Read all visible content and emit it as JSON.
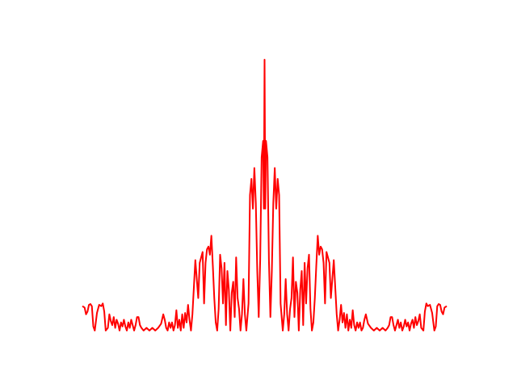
{
  "chart_data": {
    "type": "line",
    "title": "",
    "xlabel": "",
    "ylabel": "",
    "axes_visible": false,
    "grid": false,
    "legend": "none",
    "xlim": [
      0,
      1
    ],
    "ylim": [
      0,
      1
    ],
    "series": [
      {
        "color": "#ff0000",
        "points": [
          [
            0.0,
            0.09
          ],
          [
            0.006,
            0.085
          ],
          [
            0.01,
            0.06
          ],
          [
            0.014,
            0.07
          ],
          [
            0.018,
            0.095
          ],
          [
            0.022,
            0.098
          ],
          [
            0.026,
            0.09
          ],
          [
            0.03,
            0.015
          ],
          [
            0.034,
            0.0
          ],
          [
            0.04,
            0.065
          ],
          [
            0.046,
            0.095
          ],
          [
            0.052,
            0.09
          ],
          [
            0.056,
            0.1
          ],
          [
            0.06,
            0.07
          ],
          [
            0.064,
            0.0
          ],
          [
            0.07,
            0.01
          ],
          [
            0.074,
            0.06
          ],
          [
            0.078,
            0.035
          ],
          [
            0.082,
            0.02
          ],
          [
            0.086,
            0.05
          ],
          [
            0.09,
            0.01
          ],
          [
            0.094,
            0.04
          ],
          [
            0.098,
            0.025
          ],
          [
            0.102,
            0.0
          ],
          [
            0.106,
            0.03
          ],
          [
            0.11,
            0.015
          ],
          [
            0.114,
            0.04
          ],
          [
            0.118,
            0.015
          ],
          [
            0.122,
            0.0
          ],
          [
            0.126,
            0.03
          ],
          [
            0.13,
            0.01
          ],
          [
            0.134,
            0.04
          ],
          [
            0.138,
            0.02
          ],
          [
            0.142,
            0.0
          ],
          [
            0.146,
            0.02
          ],
          [
            0.15,
            0.05
          ],
          [
            0.154,
            0.05
          ],
          [
            0.158,
            0.02
          ],
          [
            0.162,
            0.01
          ],
          [
            0.168,
            0.0
          ],
          [
            0.176,
            0.01
          ],
          [
            0.184,
            0.0
          ],
          [
            0.192,
            0.01
          ],
          [
            0.2,
            0.0
          ],
          [
            0.208,
            0.01
          ],
          [
            0.216,
            0.025
          ],
          [
            0.222,
            0.06
          ],
          [
            0.226,
            0.04
          ],
          [
            0.23,
            0.01
          ],
          [
            0.234,
            0.0
          ],
          [
            0.238,
            0.03
          ],
          [
            0.242,
            0.01
          ],
          [
            0.246,
            0.03
          ],
          [
            0.25,
            0.0
          ],
          [
            0.254,
            0.02
          ],
          [
            0.258,
            0.075
          ],
          [
            0.262,
            0.01
          ],
          [
            0.266,
            0.04
          ],
          [
            0.27,
            0.0
          ],
          [
            0.274,
            0.06
          ],
          [
            0.278,
            0.01
          ],
          [
            0.282,
            0.065
          ],
          [
            0.286,
            0.03
          ],
          [
            0.29,
            0.095
          ],
          [
            0.294,
            0.04
          ],
          [
            0.298,
            0.0
          ],
          [
            0.302,
            0.06
          ],
          [
            0.306,
            0.16
          ],
          [
            0.31,
            0.26
          ],
          [
            0.314,
            0.19
          ],
          [
            0.318,
            0.12
          ],
          [
            0.322,
            0.25
          ],
          [
            0.326,
            0.27
          ],
          [
            0.33,
            0.29
          ],
          [
            0.334,
            0.1
          ],
          [
            0.338,
            0.25
          ],
          [
            0.342,
            0.3
          ],
          [
            0.346,
            0.31
          ],
          [
            0.35,
            0.28
          ],
          [
            0.354,
            0.35
          ],
          [
            0.358,
            0.24
          ],
          [
            0.362,
            0.12
          ],
          [
            0.366,
            0.03
          ],
          [
            0.37,
            0.0
          ],
          [
            0.374,
            0.08
          ],
          [
            0.378,
            0.28
          ],
          [
            0.382,
            0.23
          ],
          [
            0.386,
            0.1
          ],
          [
            0.39,
            0.25
          ],
          [
            0.394,
            0.02
          ],
          [
            0.398,
            0.22
          ],
          [
            0.402,
            0.15
          ],
          [
            0.406,
            0.0
          ],
          [
            0.41,
            0.14
          ],
          [
            0.414,
            0.18
          ],
          [
            0.418,
            0.05
          ],
          [
            0.422,
            0.27
          ],
          [
            0.426,
            0.12
          ],
          [
            0.43,
            0.08
          ],
          [
            0.434,
            0.0
          ],
          [
            0.438,
            0.06
          ],
          [
            0.442,
            0.19
          ],
          [
            0.446,
            0.06
          ],
          [
            0.45,
            0.0
          ],
          [
            0.456,
            0.1
          ],
          [
            0.46,
            0.5
          ],
          [
            0.464,
            0.56
          ],
          [
            0.468,
            0.45
          ],
          [
            0.472,
            0.6
          ],
          [
            0.476,
            0.47
          ],
          [
            0.48,
            0.22
          ],
          [
            0.484,
            0.05
          ],
          [
            0.488,
            0.26
          ],
          [
            0.492,
            0.64
          ],
          [
            0.496,
            0.7
          ],
          [
            0.498,
            0.45
          ],
          [
            0.5,
            1.0
          ],
          [
            0.502,
            0.45
          ],
          [
            0.504,
            0.7
          ],
          [
            0.508,
            0.64
          ],
          [
            0.512,
            0.26
          ],
          [
            0.516,
            0.05
          ],
          [
            0.52,
            0.22
          ],
          [
            0.524,
            0.47
          ],
          [
            0.528,
            0.6
          ],
          [
            0.532,
            0.45
          ],
          [
            0.536,
            0.56
          ],
          [
            0.54,
            0.5
          ],
          [
            0.544,
            0.1
          ],
          [
            0.55,
            0.0
          ],
          [
            0.554,
            0.06
          ],
          [
            0.558,
            0.19
          ],
          [
            0.562,
            0.06
          ],
          [
            0.566,
            0.0
          ],
          [
            0.57,
            0.08
          ],
          [
            0.574,
            0.12
          ],
          [
            0.578,
            0.27
          ],
          [
            0.582,
            0.05
          ],
          [
            0.586,
            0.18
          ],
          [
            0.59,
            0.14
          ],
          [
            0.594,
            0.0
          ],
          [
            0.598,
            0.15
          ],
          [
            0.602,
            0.22
          ],
          [
            0.606,
            0.02
          ],
          [
            0.61,
            0.25
          ],
          [
            0.614,
            0.1
          ],
          [
            0.618,
            0.23
          ],
          [
            0.622,
            0.28
          ],
          [
            0.626,
            0.08
          ],
          [
            0.63,
            0.0
          ],
          [
            0.634,
            0.03
          ],
          [
            0.638,
            0.12
          ],
          [
            0.642,
            0.24
          ],
          [
            0.646,
            0.35
          ],
          [
            0.65,
            0.28
          ],
          [
            0.654,
            0.31
          ],
          [
            0.658,
            0.3
          ],
          [
            0.662,
            0.25
          ],
          [
            0.666,
            0.1
          ],
          [
            0.67,
            0.29
          ],
          [
            0.674,
            0.27
          ],
          [
            0.678,
            0.25
          ],
          [
            0.682,
            0.12
          ],
          [
            0.686,
            0.19
          ],
          [
            0.69,
            0.26
          ],
          [
            0.694,
            0.16
          ],
          [
            0.698,
            0.06
          ],
          [
            0.702,
            0.0
          ],
          [
            0.706,
            0.04
          ],
          [
            0.71,
            0.095
          ],
          [
            0.714,
            0.03
          ],
          [
            0.718,
            0.065
          ],
          [
            0.722,
            0.01
          ],
          [
            0.726,
            0.06
          ],
          [
            0.73,
            0.0
          ],
          [
            0.734,
            0.04
          ],
          [
            0.738,
            0.01
          ],
          [
            0.742,
            0.075
          ],
          [
            0.746,
            0.02
          ],
          [
            0.75,
            0.0
          ],
          [
            0.754,
            0.03
          ],
          [
            0.758,
            0.01
          ],
          [
            0.762,
            0.03
          ],
          [
            0.766,
            0.0
          ],
          [
            0.77,
            0.01
          ],
          [
            0.774,
            0.04
          ],
          [
            0.778,
            0.06
          ],
          [
            0.784,
            0.025
          ],
          [
            0.792,
            0.01
          ],
          [
            0.8,
            0.0
          ],
          [
            0.808,
            0.01
          ],
          [
            0.816,
            0.0
          ],
          [
            0.824,
            0.01
          ],
          [
            0.832,
            0.0
          ],
          [
            0.838,
            0.01
          ],
          [
            0.842,
            0.02
          ],
          [
            0.846,
            0.05
          ],
          [
            0.85,
            0.05
          ],
          [
            0.854,
            0.02
          ],
          [
            0.858,
            0.0
          ],
          [
            0.862,
            0.02
          ],
          [
            0.866,
            0.04
          ],
          [
            0.87,
            0.01
          ],
          [
            0.874,
            0.03
          ],
          [
            0.878,
            0.0
          ],
          [
            0.882,
            0.015
          ],
          [
            0.886,
            0.04
          ],
          [
            0.89,
            0.015
          ],
          [
            0.894,
            0.03
          ],
          [
            0.898,
            0.0
          ],
          [
            0.902,
            0.025
          ],
          [
            0.906,
            0.04
          ],
          [
            0.91,
            0.01
          ],
          [
            0.914,
            0.05
          ],
          [
            0.918,
            0.02
          ],
          [
            0.922,
            0.035
          ],
          [
            0.926,
            0.06
          ],
          [
            0.93,
            0.01
          ],
          [
            0.936,
            0.0
          ],
          [
            0.94,
            0.07
          ],
          [
            0.944,
            0.1
          ],
          [
            0.948,
            0.09
          ],
          [
            0.954,
            0.095
          ],
          [
            0.96,
            0.065
          ],
          [
            0.966,
            0.0
          ],
          [
            0.97,
            0.015
          ],
          [
            0.974,
            0.09
          ],
          [
            0.978,
            0.098
          ],
          [
            0.982,
            0.095
          ],
          [
            0.986,
            0.07
          ],
          [
            0.99,
            0.06
          ],
          [
            0.994,
            0.085
          ],
          [
            1.0,
            0.09
          ]
        ]
      }
    ]
  }
}
